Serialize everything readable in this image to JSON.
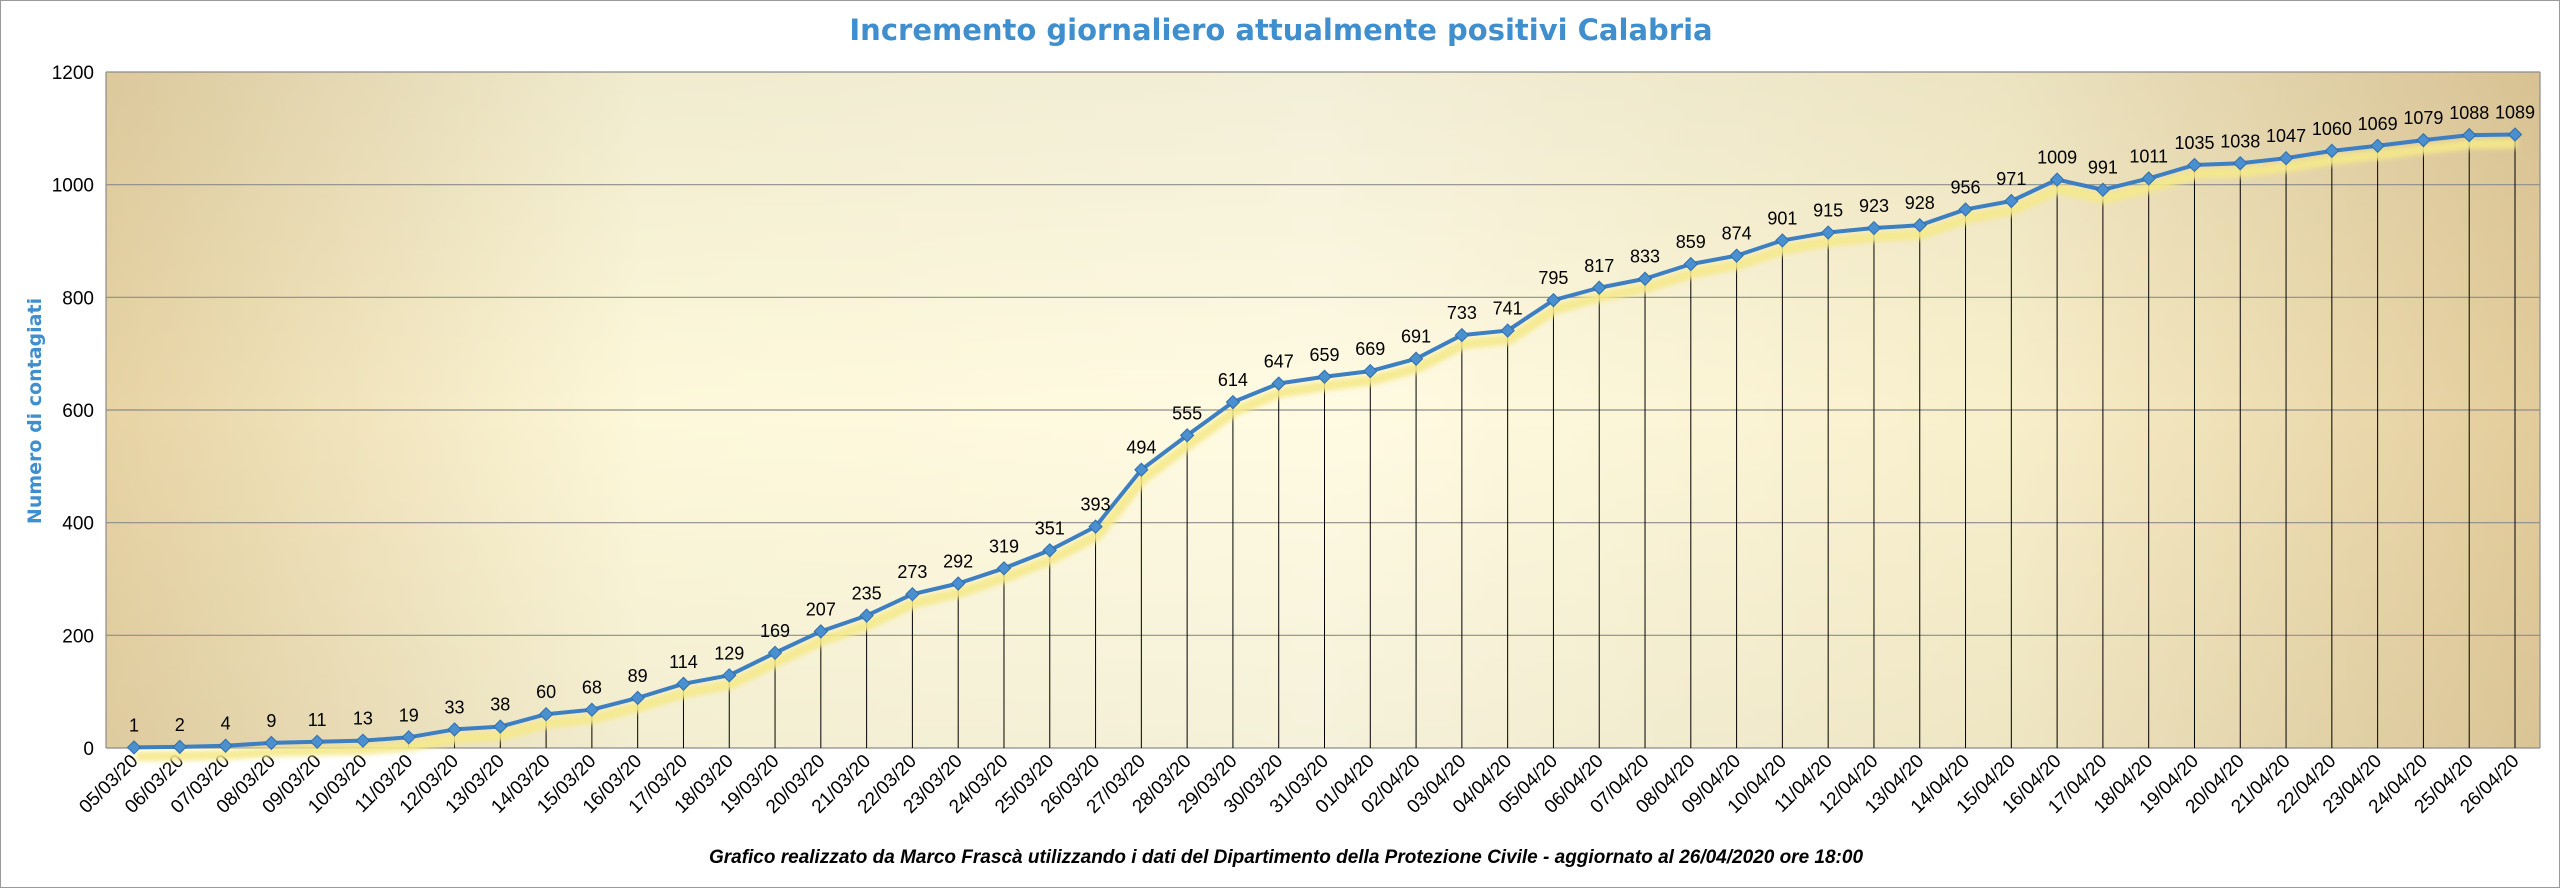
{
  "chart_data": {
    "type": "line",
    "title": "Incremento giornaliero attualmente positivi Calabria",
    "ylabel": "Numero di contagiati",
    "xlabel": "",
    "ylim": [
      0,
      1200
    ],
    "yticks": [
      0,
      200,
      400,
      600,
      800,
      1000,
      1200
    ],
    "grid": true,
    "legend": "none",
    "categories": [
      "05/03/20",
      "06/03/20",
      "07/03/20",
      "08/03/20",
      "09/03/20",
      "10/03/20",
      "11/03/20",
      "12/03/20",
      "13/03/20",
      "14/03/20",
      "15/03/20",
      "16/03/20",
      "17/03/20",
      "18/03/20",
      "19/03/20",
      "20/03/20",
      "21/03/20",
      "22/03/20",
      "23/03/20",
      "24/03/20",
      "25/03/20",
      "26/03/20",
      "27/03/20",
      "28/03/20",
      "29/03/20",
      "30/03/20",
      "31/03/20",
      "01/04/20",
      "02/04/20",
      "03/04/20",
      "04/04/20",
      "05/04/20",
      "06/04/20",
      "07/04/20",
      "08/04/20",
      "09/04/20",
      "10/04/20",
      "11/04/20",
      "12/04/20",
      "13/04/20",
      "14/04/20",
      "15/04/20",
      "16/04/20",
      "17/04/20",
      "18/04/20",
      "19/04/20",
      "20/04/20",
      "21/04/20",
      "22/04/20",
      "23/04/20",
      "24/04/20",
      "25/04/20",
      "26/04/20"
    ],
    "series": [
      {
        "values": [
          1,
          2,
          4,
          9,
          11,
          13,
          19,
          33,
          38,
          60,
          68,
          89,
          114,
          129,
          169,
          207,
          235,
          273,
          292,
          319,
          351,
          393,
          494,
          555,
          614,
          647,
          659,
          669,
          691,
          733,
          741,
          795,
          817,
          833,
          859,
          874,
          901,
          915,
          923,
          928,
          956,
          971,
          1009,
          991,
          1011,
          1035,
          1038,
          1047,
          1060,
          1069,
          1079,
          1088,
          1089
        ]
      }
    ],
    "colors": {
      "line": "#3d7fc1",
      "marker": "#4a8fd0",
      "shadow": "#f5e98a",
      "plot_bg_light": "#fdf8da",
      "plot_bg_dark": "#e3cc9b",
      "title": "#3f8fcf",
      "ylabel": "#3f8fcf",
      "drop_line": "#000000",
      "grid": "#8c8c8c"
    }
  },
  "footer": "Grafico  realizzato da Marco Frascà  utilizzando i dati del Dipartimento  della Protezione Civile - aggiornato al 26/04/2020 ore 18:00"
}
